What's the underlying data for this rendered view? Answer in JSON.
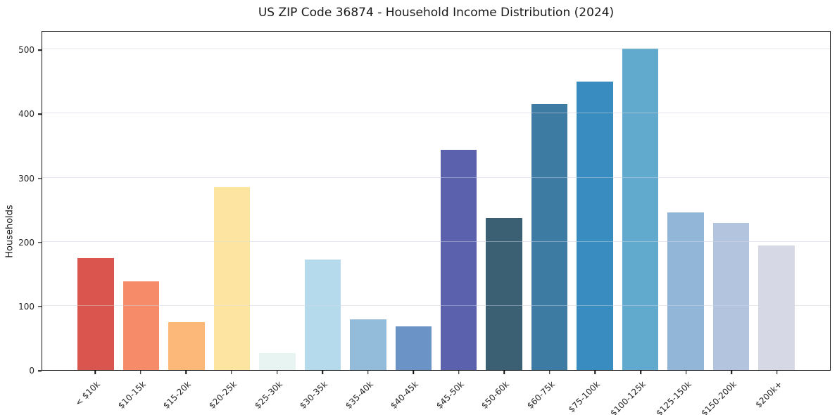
{
  "title": "US ZIP Code 36874 - Household Income Distribution (2024)",
  "chart_data": {
    "type": "bar",
    "title": "US ZIP Code 36874 - Household Income Distribution (2024)",
    "xlabel": "",
    "ylabel": "Households",
    "categories": [
      "< $10k",
      "$10-15k",
      "$15-20k",
      "$20-25k",
      "$25-30k",
      "$30-35k",
      "$35-40k",
      "$40-45k",
      "$45-50k",
      "$50-60k",
      "$60-75k",
      "$75-100k",
      "$100-125k",
      "$125-150k",
      "$150-200k",
      "$200k+"
    ],
    "values": [
      174,
      138,
      75,
      285,
      26,
      172,
      79,
      68,
      344,
      237,
      415,
      450,
      502,
      246,
      229,
      194
    ],
    "bar_colors": [
      "#d9554e",
      "#f58b68",
      "#fbb878",
      "#fde4a0",
      "#e8f4f2",
      "#b4daeb",
      "#92bcd9",
      "#6b93c5",
      "#5c61ae",
      "#3b6073",
      "#3e7ba3",
      "#398cc0",
      "#61a9cd",
      "#92b6d8",
      "#b3c4de",
      "#d7d8e6"
    ],
    "ylim": [
      0,
      530
    ],
    "yticks": [
      0,
      100,
      200,
      300,
      400,
      500
    ],
    "grid": true,
    "legend": "none",
    "background_color": "#ffffff",
    "axis_spine_color": "#111111",
    "gridline_color": "#ebebf0",
    "tick_label_color": "#262626",
    "x_tick_rotation_deg": 45
  }
}
